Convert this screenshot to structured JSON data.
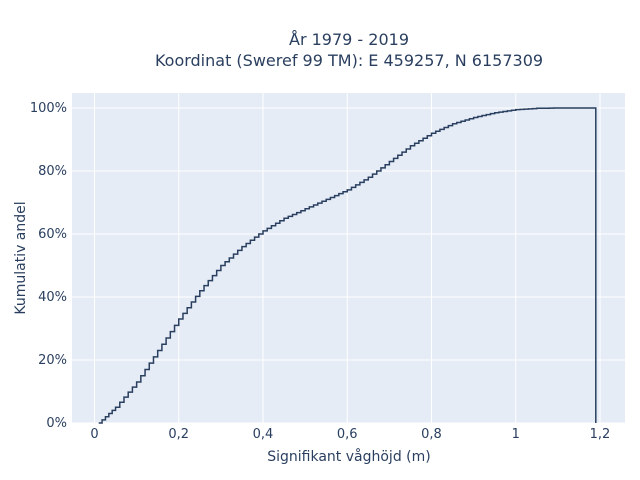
{
  "chart_data": {
    "type": "line",
    "line_shape": "step",
    "title_line1": "År 1979 - 2019",
    "title_line2": "Koordinat (Sweref 99 TM): E 459257, N 6157309",
    "xlabel": "Signifikant våghöjd (m)",
    "ylabel": "Kumulativ andel",
    "xlim": [
      -0.05,
      1.245
    ],
    "ylim": [
      0,
      1.05
    ],
    "x_ticks": [
      0,
      0.2,
      0.4,
      0.6,
      0.8,
      1.0,
      1.2
    ],
    "x_tick_labels": [
      "0",
      "0,2",
      "0,4",
      "0,6",
      "0,8",
      "1",
      "1,2"
    ],
    "y_ticks": [
      0,
      0.2,
      0.4,
      0.6,
      0.8,
      1.0
    ],
    "y_tick_labels": [
      "0%",
      "20%",
      "40%",
      "60%",
      "80%",
      "100%"
    ],
    "grid": true,
    "colors": {
      "line": "#2a3f5f",
      "plot_bg": "#e5ecf6",
      "grid": "#ffffff"
    },
    "series": [
      {
        "x": [
          0.01,
          0.05,
          0.1,
          0.15,
          0.2,
          0.25,
          0.3,
          0.35,
          0.4,
          0.45,
          0.5,
          0.55,
          0.6,
          0.65,
          0.7,
          0.75,
          0.8,
          0.85,
          0.9,
          0.95,
          1.0,
          1.05,
          1.1,
          1.15,
          1.19,
          1.19
        ],
        "y": [
          0.0,
          0.05,
          0.13,
          0.23,
          0.33,
          0.42,
          0.5,
          0.56,
          0.61,
          0.65,
          0.68,
          0.71,
          0.74,
          0.78,
          0.83,
          0.88,
          0.92,
          0.95,
          0.97,
          0.985,
          0.995,
          0.999,
          1.0,
          1.0,
          1.0,
          0.0
        ]
      }
    ]
  }
}
